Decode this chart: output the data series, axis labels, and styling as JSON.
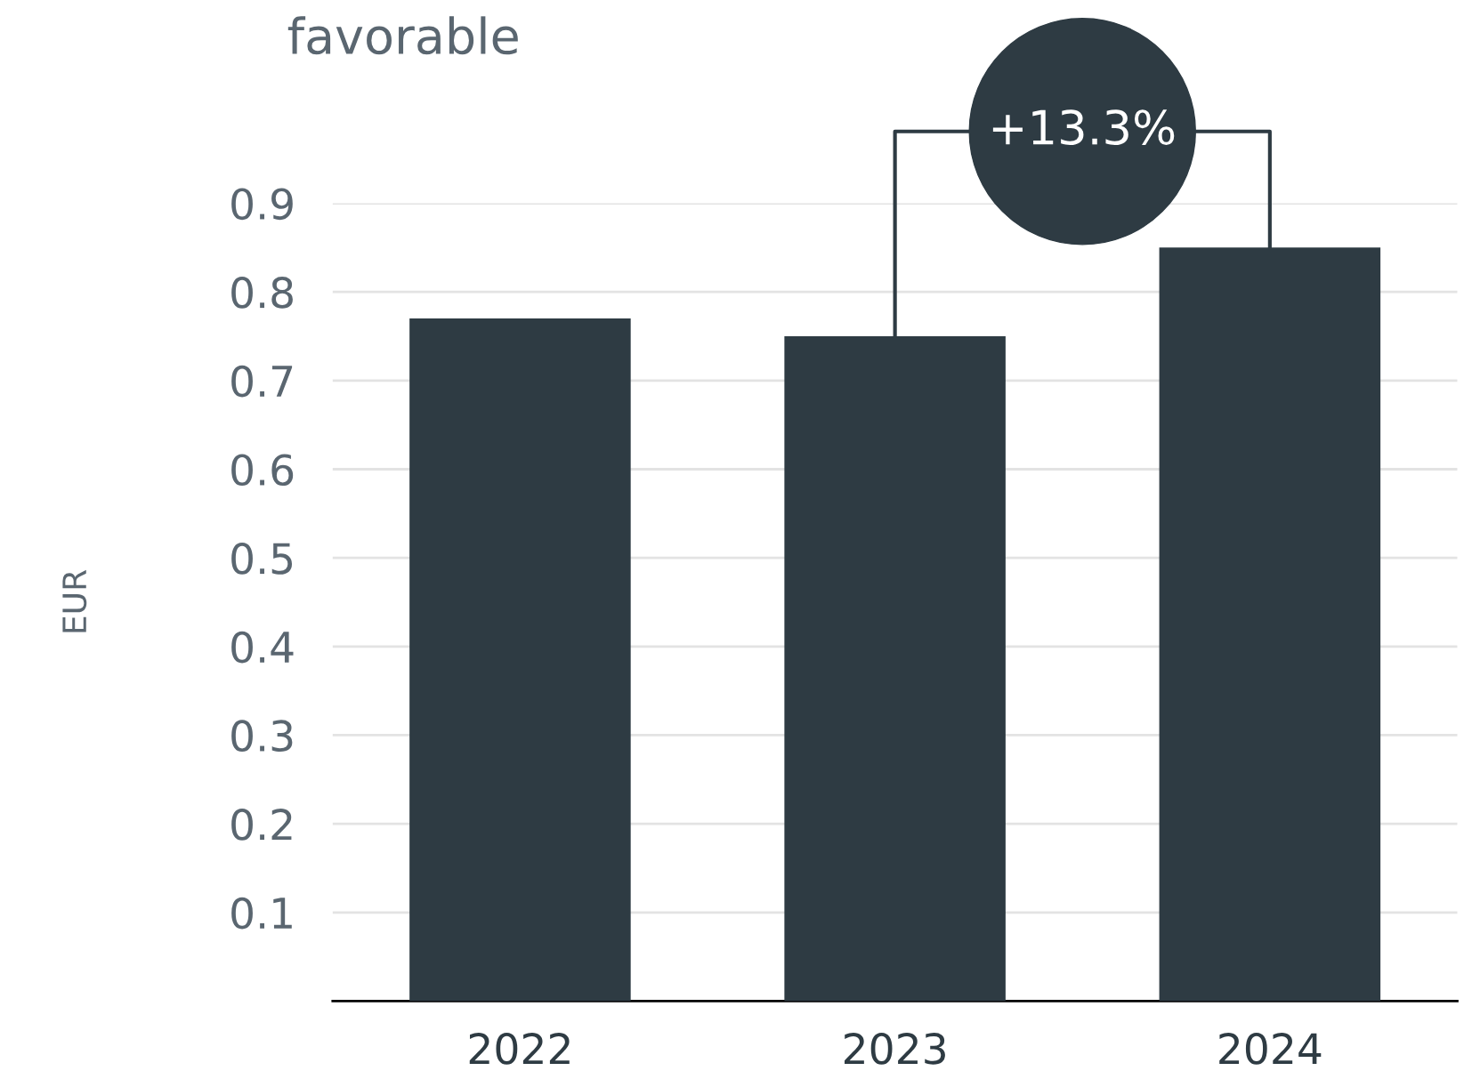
{
  "chart_data": {
    "type": "bar",
    "title": "favorable",
    "ylabel": "EUR",
    "categories": [
      "2022",
      "2023",
      "2024"
    ],
    "values": [
      0.77,
      0.75,
      0.85
    ],
    "color": "#2e3b43",
    "ylim": [
      0,
      0.9
    ],
    "yticks": [
      0.1,
      0.2,
      0.3,
      0.4,
      0.5,
      0.6,
      0.7,
      0.8,
      0.9
    ],
    "grid": "y",
    "legend": false,
    "annotations": [
      "+13.3%"
    ]
  }
}
